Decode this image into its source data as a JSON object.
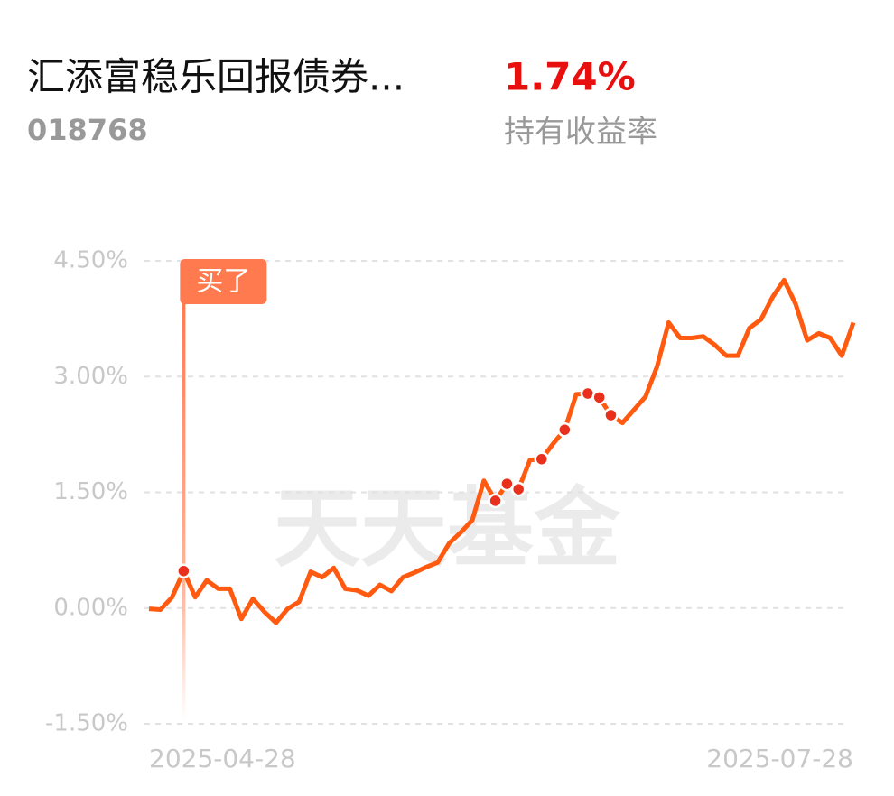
{
  "header": {
    "fund_name": "汇添富稳乐回报债券...",
    "fund_code": "018768",
    "return_value": "1.74%",
    "return_label": "持有收益率"
  },
  "chart_data": {
    "type": "line",
    "watermark": "天天基金",
    "categories": [
      "2025-04-28",
      null,
      null,
      null,
      null,
      null,
      null,
      null,
      null,
      null,
      null,
      null,
      null,
      null,
      null,
      null,
      null,
      null,
      null,
      null,
      null,
      null,
      null,
      null,
      null,
      null,
      null,
      null,
      null,
      null,
      null,
      null,
      null,
      null,
      null,
      null,
      null,
      null,
      null,
      null,
      null,
      null,
      null,
      null,
      null,
      null,
      null,
      null,
      null,
      null,
      null,
      null,
      null,
      null,
      null,
      null,
      null,
      null,
      null,
      null,
      null,
      "2025-07-28"
    ],
    "values": [
      -0.01,
      -0.02,
      0.14,
      0.48,
      0.14,
      0.36,
      0.25,
      0.25,
      -0.14,
      0.12,
      -0.05,
      -0.19,
      -0.01,
      0.08,
      0.47,
      0.4,
      0.52,
      0.25,
      0.23,
      0.16,
      0.3,
      0.22,
      0.4,
      0.46,
      0.53,
      0.59,
      0.84,
      0.98,
      1.14,
      1.65,
      1.39,
      1.61,
      1.54,
      1.92,
      1.93,
      2.13,
      2.31,
      2.77,
      2.78,
      2.73,
      2.5,
      2.4,
      2.57,
      2.74,
      3.13,
      3.7,
      3.5,
      3.5,
      3.52,
      3.41,
      3.27,
      3.27,
      3.63,
      3.74,
      4.03,
      4.25,
      3.94,
      3.47,
      3.56,
      3.5,
      3.27,
      3.7
    ],
    "color": "#ff5a0f",
    "highlight_points": [
      30,
      31,
      32,
      34,
      36,
      38,
      39,
      40
    ],
    "highlight_color": "#e8301c",
    "annotation": {
      "text": "买了",
      "index": 3,
      "color": "#ff7b4f"
    },
    "ylim": [
      -1.5,
      4.5
    ],
    "yticks": [
      {
        "value": -1.5,
        "label": "-1.50%"
      },
      {
        "value": 0,
        "label": "0.00%"
      },
      {
        "value": 1.5,
        "label": "1.50%"
      },
      {
        "value": 3,
        "label": "3.00%"
      },
      {
        "value": 4.5,
        "label": "4.50%"
      }
    ],
    "grid": true
  }
}
